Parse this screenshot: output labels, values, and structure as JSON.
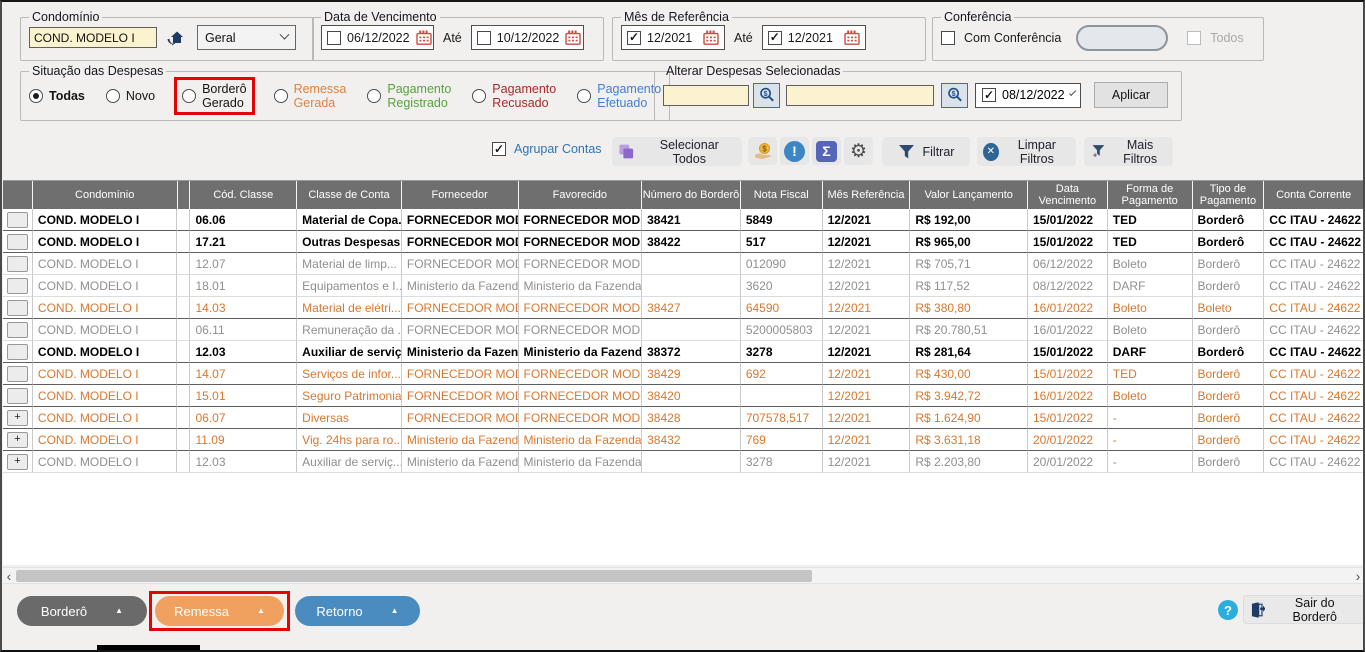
{
  "filters": {
    "condominio": {
      "legend": "Condomínio",
      "value": "COND. MODELO I",
      "scope_value": "Geral"
    },
    "vencimento": {
      "legend": "Data de Vencimento",
      "separator": "Até",
      "from": {
        "checked": false,
        "value": "06/12/2022"
      },
      "to": {
        "checked": false,
        "value": "10/12/2022"
      }
    },
    "mes_referencia": {
      "legend": "Mês de Referência",
      "separator": "Até",
      "from": {
        "checked": true,
        "value": "12/2021"
      },
      "to": {
        "checked": true,
        "value": "12/2021"
      }
    },
    "conferencia": {
      "legend": "Conferência",
      "com_conferencia": {
        "checked": false,
        "label": "Com Conferência"
      },
      "todos": {
        "checked": false,
        "label": "Todos",
        "disabled": true
      }
    },
    "situacao": {
      "legend": "Situação das Despesas",
      "options": [
        {
          "label": "Todas",
          "checked": true,
          "bold": true,
          "color": "#141414"
        },
        {
          "label": "Novo",
          "checked": false,
          "color": "#141414"
        },
        {
          "label": "Borderô Gerado",
          "checked": false,
          "color": "#141414",
          "highlighted": true
        },
        {
          "label": "Remessa Gerada",
          "checked": false,
          "color": "#e0813c"
        },
        {
          "label": "Pagamento Registrado",
          "checked": false,
          "color": "#56a23c"
        },
        {
          "label": "Pagamento Recusado",
          "checked": false,
          "color": "#a62a2a"
        },
        {
          "label": "Pagamento Efetuado",
          "checked": false,
          "color": "#3f7fd6"
        }
      ]
    },
    "alterar": {
      "legend": "Alterar Despesas Selecionadas",
      "input1": "",
      "input2": "",
      "date": {
        "checked": true,
        "value": "08/12/2022"
      },
      "apply_label": "Aplicar"
    }
  },
  "toolbar": {
    "agrupar": {
      "label": "Agrupar Contas",
      "checked": true
    },
    "selecionar_label": "Selecionar Todos",
    "filtrar_label": "Filtrar",
    "limpar_label": "Limpar Filtros",
    "mais_label": "Mais Filtros",
    "sigma_glyph": "Σ",
    "gear_glyph": "⚙",
    "alert_glyph": "!",
    "clear_glyph": "✕"
  },
  "table": {
    "headers": [
      "",
      "Condomínio",
      "",
      "Cód. Classe",
      "Classe de Conta",
      "Fornecedor",
      "Favorecido",
      "Número do Borderô",
      "Nota Fiscal",
      "Mês Referência",
      "Valor Lançamento",
      "Data Vencimento",
      "Forma de Pagamento",
      "Tipo de Pagamento",
      "Conta Corrente"
    ],
    "rows": [
      {
        "style": "bold",
        "emphasis": true,
        "expander": "",
        "cells": [
          "COND. MODELO I",
          "",
          "06.06",
          "Material de Copa...",
          "FORNECEDOR MOD...",
          "FORNECEDOR MOD...",
          "38421",
          "5849",
          "12/2021",
          "R$ 192,00",
          "15/01/2022",
          "TED",
          "Borderô",
          "CC ITAU - 24622"
        ]
      },
      {
        "style": "bold",
        "emphasis": true,
        "expander": "",
        "cells": [
          "COND. MODELO I",
          "",
          "17.21",
          "Outras Despesas ...",
          "FORNECEDOR MOD...",
          "FORNECEDOR MOD...",
          "38422",
          "517",
          "12/2021",
          "R$ 965,00",
          "15/01/2022",
          "TED",
          "Borderô",
          "CC ITAU - 24622"
        ]
      },
      {
        "style": "gray",
        "emphasis": false,
        "expander": "",
        "cells": [
          "COND. MODELO I",
          "",
          "12.07",
          "Material de limp...",
          "FORNECEDOR MOD...",
          "FORNECEDOR MOD...",
          "",
          "012090",
          "12/2021",
          "R$ 705,71",
          "06/12/2022",
          "Boleto",
          "Borderô",
          "CC ITAU - 24622"
        ]
      },
      {
        "style": "gray",
        "emphasis": false,
        "expander": "",
        "cells": [
          "COND. MODELO I",
          "",
          "18.01",
          "Equipamentos e I...",
          "Ministerio da Fazenda",
          "Ministerio da Fazenda",
          "",
          "3620",
          "12/2021",
          "R$ 117,52",
          "08/12/2022",
          "DARF",
          "Borderô",
          "CC ITAU - 24622"
        ]
      },
      {
        "style": "orange",
        "emphasis": true,
        "expander": "",
        "cells": [
          "COND. MODELO I",
          "",
          "14.03",
          "Material de elétri...",
          "FORNECEDOR MOD...",
          "FORNECEDOR MOD...",
          "38427",
          "64590",
          "12/2021",
          "R$ 380,80",
          "16/01/2022",
          "Boleto",
          "Boleto",
          "CC ITAU - 24622"
        ]
      },
      {
        "style": "gray",
        "emphasis": false,
        "expander": "",
        "cells": [
          "COND. MODELO I",
          "",
          "06.11",
          "Remuneração da ...",
          "FORNECEDOR MOD...",
          "FORNECEDOR MOD...",
          "",
          "5200005803",
          "12/2021",
          "R$ 20.780,51",
          "16/01/2022",
          "Boleto",
          "Borderô",
          "CC ITAU - 24622"
        ]
      },
      {
        "style": "bold",
        "emphasis": true,
        "expander": "",
        "cells": [
          "COND. MODELO I",
          "",
          "12.03",
          "Auxiliar de serviç...",
          "Ministerio da Fazenda",
          "Ministerio da Fazenda",
          "38372",
          "3278",
          "12/2021",
          "R$ 281,64",
          "15/01/2022",
          "DARF",
          "Borderô",
          "CC ITAU - 24622"
        ]
      },
      {
        "style": "orange",
        "emphasis": true,
        "expander": "",
        "cells": [
          "COND. MODELO I",
          "",
          "14.07",
          "Serviços de infor...",
          "FORNECEDOR MOD...",
          "FORNECEDOR MOD...",
          "38429",
          "692",
          "12/2021",
          "R$ 430,00",
          "15/01/2022",
          "TED",
          "Borderô",
          "CC ITAU - 24622"
        ]
      },
      {
        "style": "orange",
        "emphasis": true,
        "expander": "",
        "cells": [
          "COND. MODELO I",
          "",
          "15.01",
          "Seguro Patrimonial",
          "FORNECEDOR MOD...",
          "FORNECEDOR MOD...",
          "38420",
          "",
          "12/2021",
          "R$ 3.942,72",
          "16/01/2022",
          "Boleto",
          "Borderô",
          "CC ITAU - 24622"
        ]
      },
      {
        "style": "orange",
        "emphasis": true,
        "expander": "+",
        "cells": [
          "COND. MODELO I",
          "",
          "06.07",
          "Diversas",
          "FORNECEDOR MOD...",
          "FORNECEDOR MOD...",
          "38428",
          "707578,517",
          "12/2021",
          "R$ 1.624,90",
          "15/01/2022",
          "-",
          "Borderô",
          "CC ITAU - 24622"
        ]
      },
      {
        "style": "orange",
        "emphasis": true,
        "expander": "+",
        "cells": [
          "COND. MODELO I",
          "",
          "11.09",
          "Vig. 24hs para ro...",
          "Ministerio da Fazenda",
          "Ministerio da Fazenda",
          "38432",
          "769",
          "12/2021",
          "R$ 3.631,18",
          "20/01/2022",
          "-",
          "Borderô",
          "CC ITAU - 24622"
        ]
      },
      {
        "style": "gray",
        "emphasis": false,
        "expander": "+",
        "cells": [
          "COND. MODELO I",
          "",
          "12.03",
          "Auxiliar de serviç...",
          "Ministerio da Fazenda",
          "Ministerio da Fazenda",
          "",
          "3278",
          "12/2021",
          "R$ 2.203,80",
          "20/01/2022",
          "-",
          "Borderô",
          "CC ITAU - 24622"
        ]
      }
    ]
  },
  "footer": {
    "bordero_label": "Borderô",
    "remessa_label": "Remessa",
    "retorno_label": "Retorno",
    "sair_label": "Sair do Borderô",
    "help_glyph": "?",
    "scroll_left_glyph": "‹",
    "scroll_right_glyph": "›"
  },
  "colors": {
    "row_bold": "#000000",
    "row_gray": "#8f8f8f",
    "row_orange": "#d9772e",
    "highlight_red": "#e30505",
    "header_bg": "#6f6f6f",
    "bordero_btn": "#6a6a6a",
    "remessa_btn": "#f0a05f",
    "retorno_btn": "#4a8cc0"
  }
}
